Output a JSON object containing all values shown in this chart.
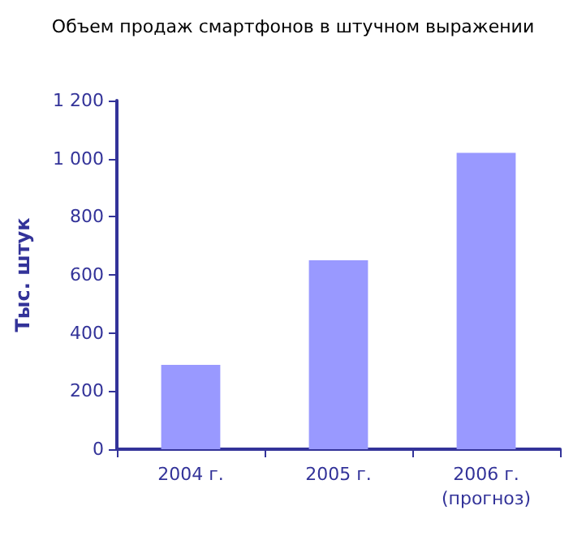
{
  "chart_data": {
    "type": "bar",
    "title": "Объем продаж смартфонов в штучном выражении",
    "ylabel": "Тыс. штук",
    "categories": [
      "2004 г.",
      "2005 г.",
      "2006 г.\n(прогноз)"
    ],
    "values": [
      290,
      650,
      1020
    ],
    "color": "#9999ff",
    "ylim": [
      0,
      1200
    ],
    "yticks": [
      0,
      200,
      400,
      600,
      800,
      {
        "value": 1000,
        "label": "1 000"
      },
      {
        "value": 1200,
        "label": "1 200"
      }
    ],
    "grid": false
  }
}
